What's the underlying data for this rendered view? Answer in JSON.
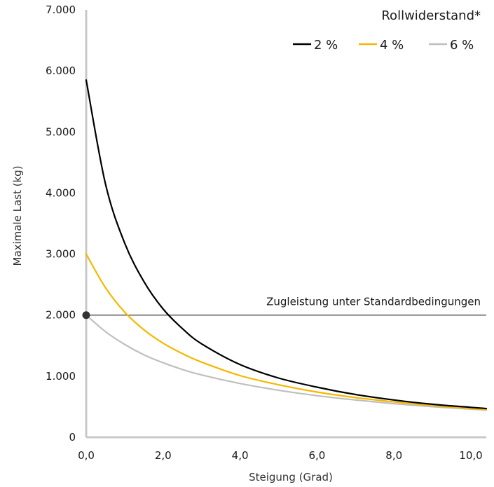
{
  "chart_data": {
    "type": "line",
    "xlabel": "Steigung (Grad)",
    "ylabel": "Maximale Last (kg)",
    "xlim": [
      0,
      10.4
    ],
    "ylim": [
      0,
      7000
    ],
    "x_ticks": [
      0,
      2,
      4,
      6,
      8,
      10
    ],
    "x_tick_labels": [
      "0,0",
      "2,0",
      "4,0",
      "6,0",
      "8,0",
      "10,0"
    ],
    "y_ticks": [
      0,
      1000,
      2000,
      3000,
      4000,
      5000,
      6000,
      7000
    ],
    "y_tick_labels": [
      "0",
      "1.000",
      "2.000",
      "3.000",
      "4.000",
      "5.000",
      "6.000",
      "7.000"
    ],
    "grid": false,
    "legend": {
      "title": "Rollwiderstand*",
      "placement": "top-right"
    },
    "series": [
      {
        "name": "2 %",
        "color": "#000000",
        "x": [
          0,
          0.5,
          1,
          1.5,
          2,
          2.5,
          3,
          4,
          5,
          6,
          7,
          8,
          9,
          10,
          10.4
        ],
        "y": [
          5850,
          4150,
          3180,
          2550,
          2100,
          1780,
          1530,
          1190,
          970,
          820,
          700,
          610,
          540,
          490,
          470
        ]
      },
      {
        "name": "4 %",
        "color": "#F5B800",
        "x": [
          0,
          0.5,
          1,
          1.5,
          2,
          2.5,
          3,
          4,
          5,
          6,
          7,
          8,
          9,
          10,
          10.4
        ],
        "y": [
          3000,
          2450,
          2050,
          1760,
          1540,
          1370,
          1230,
          1010,
          860,
          740,
          650,
          580,
          520,
          470,
          455
        ]
      },
      {
        "name": "6 %",
        "color": "#BFBFBF",
        "x": [
          0,
          0.5,
          1,
          1.5,
          2,
          2.5,
          3,
          4,
          5,
          6,
          7,
          8,
          9,
          10,
          10.4
        ],
        "y": [
          2000,
          1730,
          1520,
          1350,
          1220,
          1110,
          1020,
          880,
          770,
          680,
          610,
          550,
          500,
          460,
          445
        ]
      }
    ],
    "reference_line": {
      "y": 2000,
      "label": "Zugleistung unter Standardbedingungen",
      "color": "#000000"
    },
    "marker": {
      "x": 0,
      "y": 2000,
      "color": "#333333"
    }
  }
}
